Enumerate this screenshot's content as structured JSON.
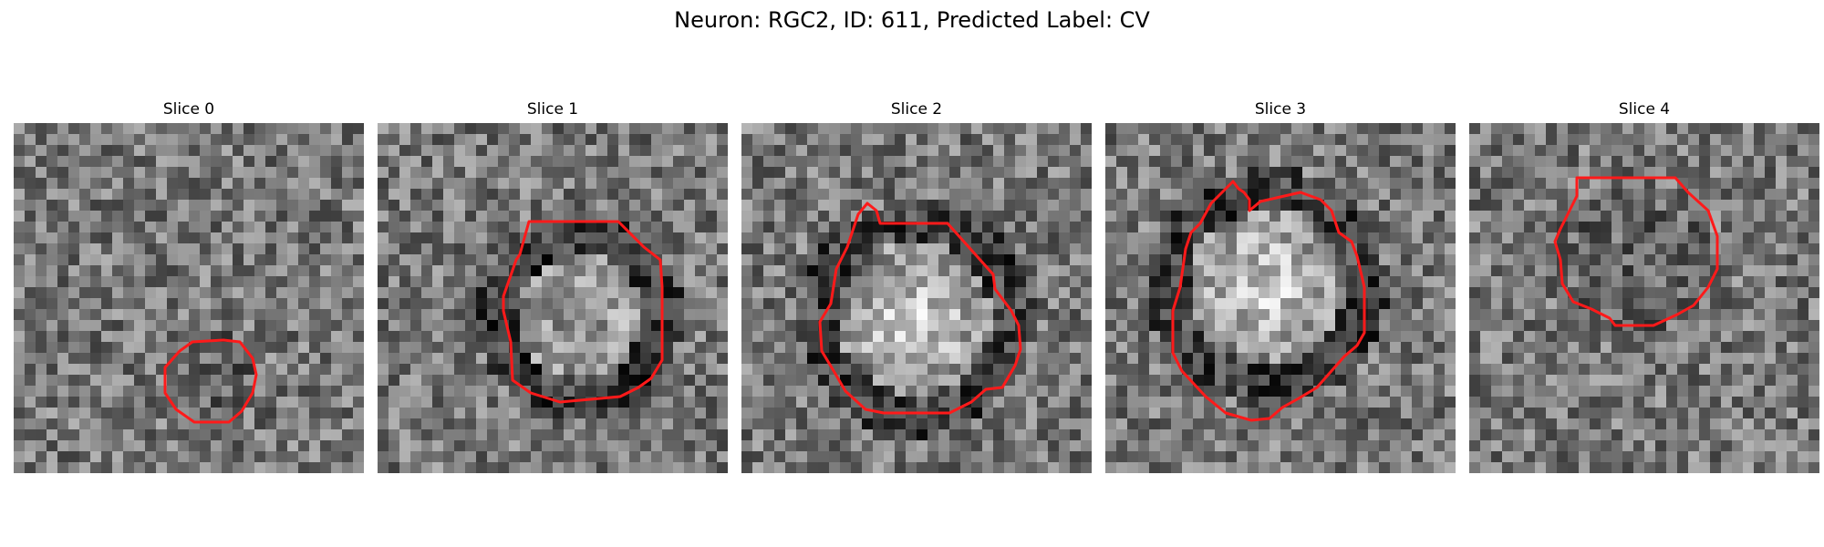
{
  "figure": {
    "title": "Neuron: RGC2, ID: 611, Predicted Label: CV"
  },
  "colors": {
    "contour": "#ff1a1a",
    "background": "#ffffff"
  },
  "panels": [
    {
      "title": "Slice 0",
      "seed": 11,
      "blob": "dark",
      "contour": [
        [
          230,
          238
        ],
        [
          248,
          240
        ],
        [
          262,
          258
        ],
        [
          266,
          276
        ],
        [
          262,
          296
        ],
        [
          250,
          316
        ],
        [
          236,
          328
        ],
        [
          198,
          328
        ],
        [
          178,
          314
        ],
        [
          166,
          296
        ],
        [
          166,
          268
        ],
        [
          182,
          250
        ],
        [
          196,
          240
        ]
      ]
    },
    {
      "title": "Slice 1",
      "seed": 29,
      "blob": "ring",
      "contour": [
        [
          166,
          108
        ],
        [
          264,
          108
        ],
        [
          292,
          136
        ],
        [
          310,
          150
        ],
        [
          312,
          180
        ],
        [
          312,
          260
        ],
        [
          300,
          280
        ],
        [
          286,
          290
        ],
        [
          266,
          300
        ],
        [
          200,
          306
        ],
        [
          168,
          296
        ],
        [
          148,
          282
        ],
        [
          146,
          240
        ],
        [
          138,
          206
        ],
        [
          138,
          190
        ],
        [
          152,
          150
        ],
        [
          156,
          144
        ]
      ]
    },
    {
      "title": "Slice 2",
      "seed": 47,
      "blob": "bright",
      "contour": [
        [
          138,
          88
        ],
        [
          148,
          96
        ],
        [
          152,
          110
        ],
        [
          226,
          110
        ],
        [
          276,
          166
        ],
        [
          278,
          182
        ],
        [
          296,
          206
        ],
        [
          304,
          222
        ],
        [
          306,
          248
        ],
        [
          300,
          266
        ],
        [
          286,
          290
        ],
        [
          268,
          292
        ],
        [
          252,
          306
        ],
        [
          228,
          318
        ],
        [
          156,
          318
        ],
        [
          136,
          314
        ],
        [
          114,
          294
        ],
        [
          100,
          270
        ],
        [
          88,
          250
        ],
        [
          86,
          218
        ],
        [
          98,
          198
        ],
        [
          104,
          160
        ],
        [
          116,
          136
        ],
        [
          128,
          100
        ]
      ]
    },
    {
      "title": "Slice 3",
      "seed": 83,
      "blob": "bright",
      "contour": [
        [
          140,
          64
        ],
        [
          146,
          72
        ],
        [
          152,
          76
        ],
        [
          158,
          84
        ],
        [
          158,
          96
        ],
        [
          170,
          86
        ],
        [
          214,
          76
        ],
        [
          236,
          84
        ],
        [
          248,
          96
        ],
        [
          256,
          120
        ],
        [
          270,
          130
        ],
        [
          276,
          146
        ],
        [
          284,
          180
        ],
        [
          284,
          230
        ],
        [
          276,
          244
        ],
        [
          262,
          256
        ],
        [
          232,
          290
        ],
        [
          212,
          302
        ],
        [
          194,
          312
        ],
        [
          180,
          324
        ],
        [
          160,
          326
        ],
        [
          132,
          318
        ],
        [
          110,
          300
        ],
        [
          84,
          272
        ],
        [
          74,
          252
        ],
        [
          74,
          206
        ],
        [
          82,
          180
        ],
        [
          88,
          138
        ],
        [
          94,
          120
        ],
        [
          104,
          110
        ],
        [
          116,
          88
        ]
      ]
    },
    {
      "title": "Slice 4",
      "seed": 101,
      "blob": "dark",
      "contour": [
        [
          118,
          60
        ],
        [
          226,
          60
        ],
        [
          240,
          76
        ],
        [
          262,
          96
        ],
        [
          272,
          124
        ],
        [
          272,
          160
        ],
        [
          262,
          180
        ],
        [
          246,
          200
        ],
        [
          228,
          210
        ],
        [
          202,
          222
        ],
        [
          160,
          222
        ],
        [
          154,
          214
        ],
        [
          134,
          204
        ],
        [
          114,
          196
        ],
        [
          102,
          176
        ],
        [
          100,
          150
        ],
        [
          94,
          130
        ],
        [
          100,
          116
        ],
        [
          108,
          100
        ],
        [
          118,
          80
        ]
      ]
    }
  ]
}
